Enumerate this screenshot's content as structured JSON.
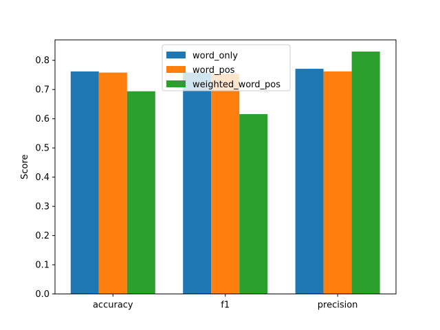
{
  "chart_data": {
    "type": "bar",
    "title": "",
    "xlabel": "",
    "ylabel": "Score",
    "categories": [
      "accuracy",
      "f1",
      "precision"
    ],
    "series": [
      {
        "name": "word_only",
        "color": "#1f77b4",
        "values": [
          0.762,
          0.758,
          0.771
        ]
      },
      {
        "name": "word_pos",
        "color": "#ff7f0e",
        "values": [
          0.758,
          0.754,
          0.762
        ]
      },
      {
        "name": "weighted_word_pos",
        "color": "#2ca02c",
        "values": [
          0.694,
          0.616,
          0.83
        ]
      }
    ],
    "ylim": [
      0,
      0.87
    ],
    "yticks": [
      "0.0",
      "0.1",
      "0.2",
      "0.3",
      "0.4",
      "0.5",
      "0.6",
      "0.7",
      "0.8"
    ],
    "grid": false,
    "legend_position": "top-center"
  }
}
